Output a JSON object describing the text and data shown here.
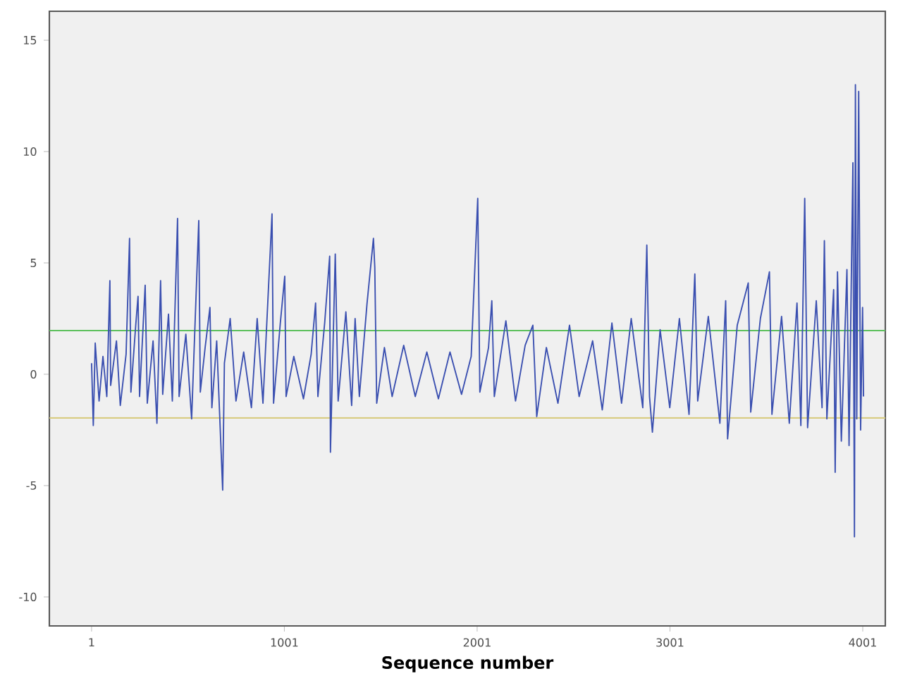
{
  "chart_data": {
    "type": "line",
    "xlabel": "Sequence number",
    "xlim": [
      -218,
      4118
    ],
    "ylim": [
      -11.3,
      16.3
    ],
    "xticks": [
      1,
      1001,
      2001,
      3001,
      4001
    ],
    "yticks": [
      -10,
      -5,
      0,
      5,
      10,
      15
    ],
    "marker": "none",
    "line_style": "solid",
    "ref_lines": [
      {
        "axis": "y",
        "value": 1.96,
        "color": "#5cc05c"
      },
      {
        "axis": "y",
        "value": -1.96,
        "color": "#d8cc80"
      }
    ],
    "series": [
      {
        "color": "#3a4fb0",
        "x": [
          1,
          10,
          20,
          40,
          60,
          80,
          96,
          100,
          130,
          150,
          180,
          198,
          205,
          230,
          242,
          250,
          279,
          290,
          320,
          340,
          359,
          370,
          400,
          420,
          447,
          455,
          490,
          520,
          557,
          565,
          590,
          615,
          625,
          650,
          681,
          690,
          720,
          750,
          790,
          830,
          860,
          890,
          937,
          945,
          980,
          1003,
          1010,
          1050,
          1100,
          1140,
          1163,
          1175,
          1210,
          1236,
          1240,
          1265,
          1280,
          1320,
          1350,
          1368,
          1390,
          1430,
          1463,
          1470,
          1480,
          1520,
          1560,
          1620,
          1680,
          1740,
          1800,
          1860,
          1920,
          1970,
          2004,
          2015,
          2060,
          2077,
          2090,
          2150,
          2200,
          2250,
          2290,
          2310,
          2360,
          2420,
          2480,
          2530,
          2600,
          2650,
          2700,
          2750,
          2800,
          2860,
          2881,
          2895,
          2910,
          2950,
          3000,
          3050,
          3100,
          3130,
          3145,
          3200,
          3260,
          3290,
          3300,
          3350,
          3407,
          3420,
          3470,
          3517,
          3530,
          3580,
          3620,
          3660,
          3680,
          3700,
          3715,
          3760,
          3790,
          3802,
          3815,
          3850,
          3858,
          3870,
          3890,
          3919,
          3930,
          3950,
          3958,
          3963,
          3970,
          3980,
          3990,
          4000,
          4005
        ],
        "values": [
          0.5,
          -2.3,
          1.4,
          -1.2,
          0.8,
          -1.0,
          4.2,
          -0.5,
          1.5,
          -1.4,
          0.9,
          6.1,
          -0.8,
          2.2,
          3.5,
          -1.0,
          4.0,
          -1.3,
          1.5,
          -2.2,
          4.2,
          -0.9,
          2.7,
          -1.2,
          7.0,
          -1.0,
          1.8,
          -2.0,
          6.9,
          -0.8,
          1.2,
          3.0,
          -1.5,
          1.5,
          -5.2,
          0.5,
          2.5,
          -1.2,
          1.0,
          -1.5,
          2.5,
          -1.3,
          7.2,
          -1.3,
          2.3,
          4.4,
          -1.0,
          0.8,
          -1.1,
          0.9,
          3.2,
          -1.0,
          2.3,
          5.3,
          -3.5,
          5.4,
          -1.2,
          2.8,
          -1.4,
          2.5,
          -1.0,
          3.2,
          6.1,
          4.8,
          -1.3,
          1.2,
          -1.0,
          1.3,
          -1.0,
          1.0,
          -1.1,
          1.0,
          -0.9,
          0.8,
          7.9,
          -0.8,
          1.2,
          3.3,
          -1.0,
          2.4,
          -1.2,
          1.3,
          2.2,
          -1.9,
          1.2,
          -1.3,
          2.2,
          -1.0,
          1.5,
          -1.6,
          2.3,
          -1.3,
          2.5,
          -1.5,
          5.8,
          -1.0,
          -2.6,
          2.0,
          -1.5,
          2.5,
          -1.8,
          4.5,
          -1.2,
          2.6,
          -2.2,
          3.3,
          -2.9,
          2.2,
          4.1,
          -1.7,
          2.5,
          4.6,
          -1.8,
          2.6,
          -2.2,
          3.2,
          -2.3,
          7.9,
          -2.4,
          3.3,
          -1.5,
          6.0,
          -2.0,
          3.8,
          -4.4,
          4.6,
          -3.0,
          4.7,
          -3.2,
          9.5,
          -7.3,
          13.0,
          -2.0,
          12.7,
          -2.5,
          3.0,
          -1.0
        ]
      }
    ]
  }
}
